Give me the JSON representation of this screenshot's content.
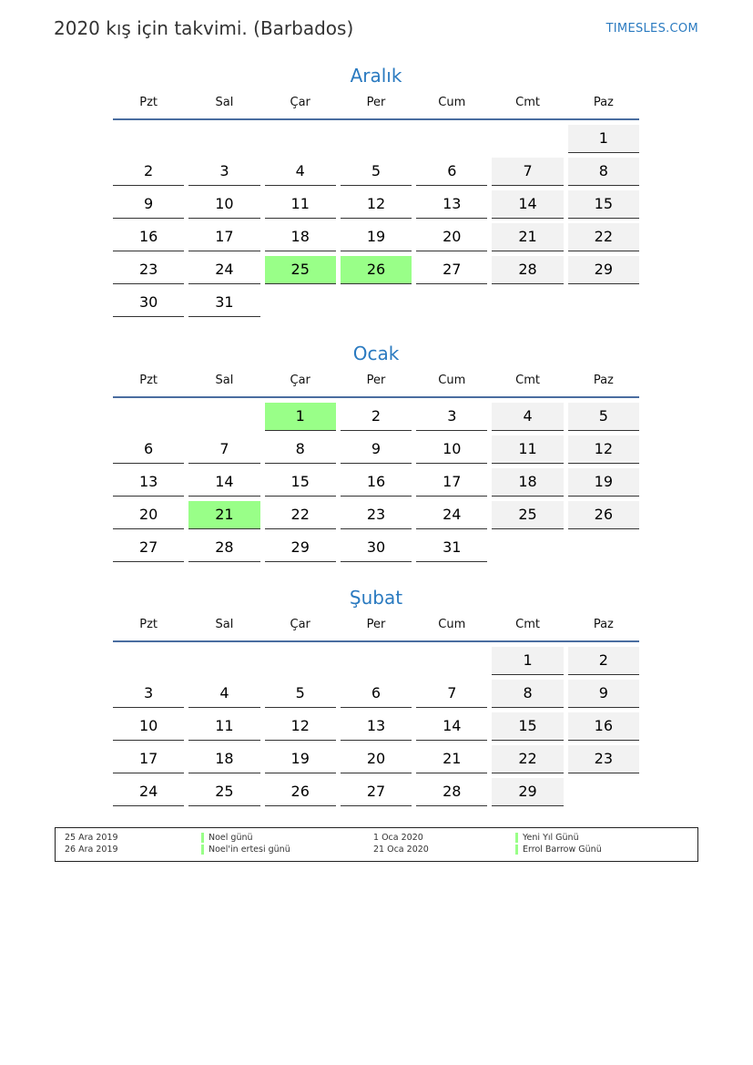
{
  "header": {
    "title": "2020 kış için takvimi. (Barbados)",
    "brand": "TIMESLES.COM"
  },
  "weekdays": [
    "Pzt",
    "Sal",
    "Çar",
    "Per",
    "Cum",
    "Cmt",
    "Paz"
  ],
  "colors": {
    "accent": "#2a7ac0",
    "holiday": "#99ff88",
    "weekend": "#f2f2f2",
    "header_rule": "#4a6da0"
  },
  "months": [
    {
      "name": "Aralık",
      "weeks": [
        [
          null,
          null,
          null,
          null,
          null,
          null,
          1
        ],
        [
          2,
          3,
          4,
          5,
          6,
          7,
          8
        ],
        [
          9,
          10,
          11,
          12,
          13,
          14,
          15
        ],
        [
          16,
          17,
          18,
          19,
          20,
          21,
          22
        ],
        [
          23,
          24,
          25,
          26,
          27,
          28,
          29
        ],
        [
          30,
          31,
          null,
          null,
          null,
          null,
          null
        ]
      ],
      "holidays": [
        25,
        26
      ]
    },
    {
      "name": "Ocak",
      "weeks": [
        [
          null,
          null,
          1,
          2,
          3,
          4,
          5
        ],
        [
          6,
          7,
          8,
          9,
          10,
          11,
          12
        ],
        [
          13,
          14,
          15,
          16,
          17,
          18,
          19
        ],
        [
          20,
          21,
          22,
          23,
          24,
          25,
          26
        ],
        [
          27,
          28,
          29,
          30,
          31,
          null,
          null
        ]
      ],
      "holidays": [
        1,
        21
      ]
    },
    {
      "name": "Şubat",
      "weeks": [
        [
          null,
          null,
          null,
          null,
          null,
          1,
          2
        ],
        [
          3,
          4,
          5,
          6,
          7,
          8,
          9
        ],
        [
          10,
          11,
          12,
          13,
          14,
          15,
          16
        ],
        [
          17,
          18,
          19,
          20,
          21,
          22,
          23
        ],
        [
          24,
          25,
          26,
          27,
          28,
          29,
          null
        ]
      ],
      "holidays": []
    }
  ],
  "legend": [
    {
      "date": "25 Ara 2019",
      "name": "Noel günü"
    },
    {
      "date": "26 Ara 2019",
      "name": "Noel'in ertesi günü"
    },
    {
      "date": "1 Oca 2020",
      "name": "Yeni Yıl Günü"
    },
    {
      "date": "21 Oca 2020",
      "name": "Errol Barrow Günü"
    }
  ]
}
